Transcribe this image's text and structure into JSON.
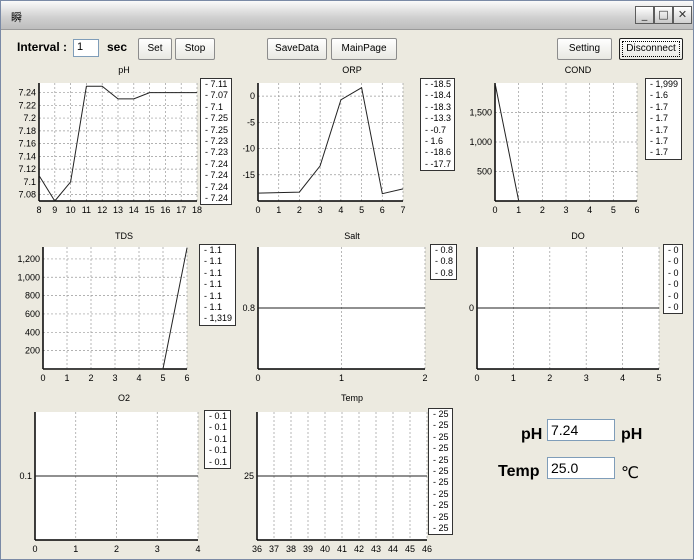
{
  "window": {
    "title": "瞬",
    "minimize": "_",
    "maximize": "□",
    "close": "✕"
  },
  "toolbar": {
    "interval_label": "Interval :",
    "interval_value": "1",
    "unit_label": "sec",
    "set": "Set",
    "stop": "Stop",
    "savedata": "SaveData",
    "mainpage": "MainPage",
    "setting": "Setting",
    "disconnect": "Disconnect"
  },
  "charts": [
    {
      "id": "ph",
      "title": "pH",
      "xticks": [
        8,
        9,
        10,
        11,
        12,
        13,
        14,
        15,
        16,
        17,
        18
      ],
      "xlim": [
        8,
        18
      ],
      "yticks": [
        7.08,
        7.1,
        7.12,
        7.14,
        7.16,
        7.18,
        7.2,
        7.22,
        7.24
      ],
      "ylim": [
        7.07,
        7.255
      ],
      "x": [
        8,
        9,
        10,
        11,
        12,
        13,
        14,
        15,
        16,
        17,
        18
      ],
      "y": [
        7.11,
        7.07,
        7.1,
        7.25,
        7.25,
        7.23,
        7.23,
        7.24,
        7.24,
        7.24,
        7.24
      ],
      "legend": [
        "7.11",
        "7.07",
        "7.1",
        "7.25",
        "7.25",
        "7.23",
        "7.23",
        "7.24",
        "7.24",
        "7.24",
        "7.24"
      ]
    },
    {
      "id": "orp",
      "title": "ORP",
      "xticks": [
        0,
        1,
        2,
        3,
        4,
        5,
        6,
        7
      ],
      "xlim": [
        0,
        7
      ],
      "yticks": [
        0,
        -5,
        -10,
        -15
      ],
      "ylim": [
        -20,
        2.5
      ],
      "x": [
        0,
        1,
        2,
        3,
        4,
        5,
        6,
        7
      ],
      "y": [
        -18.5,
        -18.4,
        -18.3,
        -13.3,
        -0.7,
        1.6,
        -18.6,
        -17.7
      ],
      "legend": [
        "-18.5",
        "-18.4",
        "-18.3",
        "-13.3",
        "-0.7",
        "1.6",
        "-18.6",
        "-17.7"
      ]
    },
    {
      "id": "cond",
      "title": "COND",
      "xticks": [
        0,
        1,
        2,
        3,
        4,
        5,
        6
      ],
      "xlim": [
        0,
        6
      ],
      "yticks": [
        500,
        1000,
        1500
      ],
      "ylim": [
        0,
        2000
      ],
      "ytick_labels": [
        "500",
        "1,000",
        "1,500"
      ],
      "x": [
        0,
        1,
        2,
        3,
        4,
        5,
        6
      ],
      "y": [
        1999,
        1.6,
        1.7,
        1.7,
        1.7,
        1.7,
        1.7
      ],
      "legend": [
        "1,999",
        "1.6",
        "1.7",
        "1.7",
        "1.7",
        "1.7",
        "1.7"
      ]
    },
    {
      "id": "tds",
      "title": "TDS",
      "xticks": [
        0,
        1,
        2,
        3,
        4,
        5,
        6
      ],
      "xlim": [
        0,
        6
      ],
      "yticks": [
        200,
        400,
        600,
        800,
        1000,
        1200
      ],
      "ylim": [
        0,
        1330
      ],
      "ytick_labels": [
        "200",
        "400",
        "600",
        "800",
        "1,000",
        "1,200"
      ],
      "x": [
        0,
        1,
        2,
        3,
        4,
        5,
        6
      ],
      "y": [
        1.1,
        1.1,
        1.1,
        1.1,
        1.1,
        1.1,
        1319
      ],
      "legend": [
        "1.1",
        "1.1",
        "1.1",
        "1.1",
        "1.1",
        "1.1",
        "1,319"
      ]
    },
    {
      "id": "salt",
      "title": "Salt",
      "xticks": [
        0,
        1,
        2
      ],
      "xlim": [
        0,
        2
      ],
      "yticks": [
        0.8
      ],
      "ylim": [
        0,
        1.6
      ],
      "x": [
        0,
        1,
        2
      ],
      "y": [
        0.8,
        0.8,
        0.8
      ],
      "legend": [
        "0.8",
        "0.8",
        "0.8"
      ]
    },
    {
      "id": "do",
      "title": "DO",
      "xticks": [
        0,
        1,
        2,
        3,
        4,
        5
      ],
      "xlim": [
        0,
        5
      ],
      "yticks": [
        0
      ],
      "ylim": [
        -1,
        1
      ],
      "x": [
        0,
        1,
        2,
        3,
        4,
        5
      ],
      "y": [
        0,
        0,
        0,
        0,
        0,
        0
      ],
      "legend": [
        "0",
        "0",
        "0",
        "0",
        "0",
        "0"
      ]
    },
    {
      "id": "o2",
      "title": "O2",
      "xticks": [
        0,
        1,
        2,
        3,
        4
      ],
      "xlim": [
        0,
        4
      ],
      "yticks": [
        0.1
      ],
      "ylim": [
        0,
        0.2
      ],
      "x": [
        0,
        1,
        2,
        3,
        4
      ],
      "y": [
        0.1,
        0.1,
        0.1,
        0.1,
        0.1
      ],
      "legend": [
        "0.1",
        "0.1",
        "0.1",
        "0.1",
        "0.1"
      ]
    },
    {
      "id": "temp",
      "title": "Temp",
      "xticks": [
        36,
        37,
        38,
        39,
        40,
        41,
        42,
        43,
        44,
        45,
        46
      ],
      "xlim": [
        36,
        46
      ],
      "yticks": [
        25
      ],
      "ylim": [
        0,
        50
      ],
      "x": [
        36,
        37,
        38,
        39,
        40,
        41,
        42,
        43,
        44,
        45,
        46
      ],
      "y": [
        25,
        25,
        25,
        25,
        25,
        25,
        25,
        25,
        25,
        25,
        25
      ],
      "legend": [
        "25",
        "25",
        "25",
        "25",
        "25",
        "25",
        "25",
        "25",
        "25",
        "25",
        "25"
      ]
    }
  ],
  "readout": {
    "ph_label": "pH",
    "ph_value": "7.24",
    "ph_unit": "pH",
    "temp_label": "Temp",
    "temp_value": "25.0",
    "temp_unit": "℃"
  }
}
